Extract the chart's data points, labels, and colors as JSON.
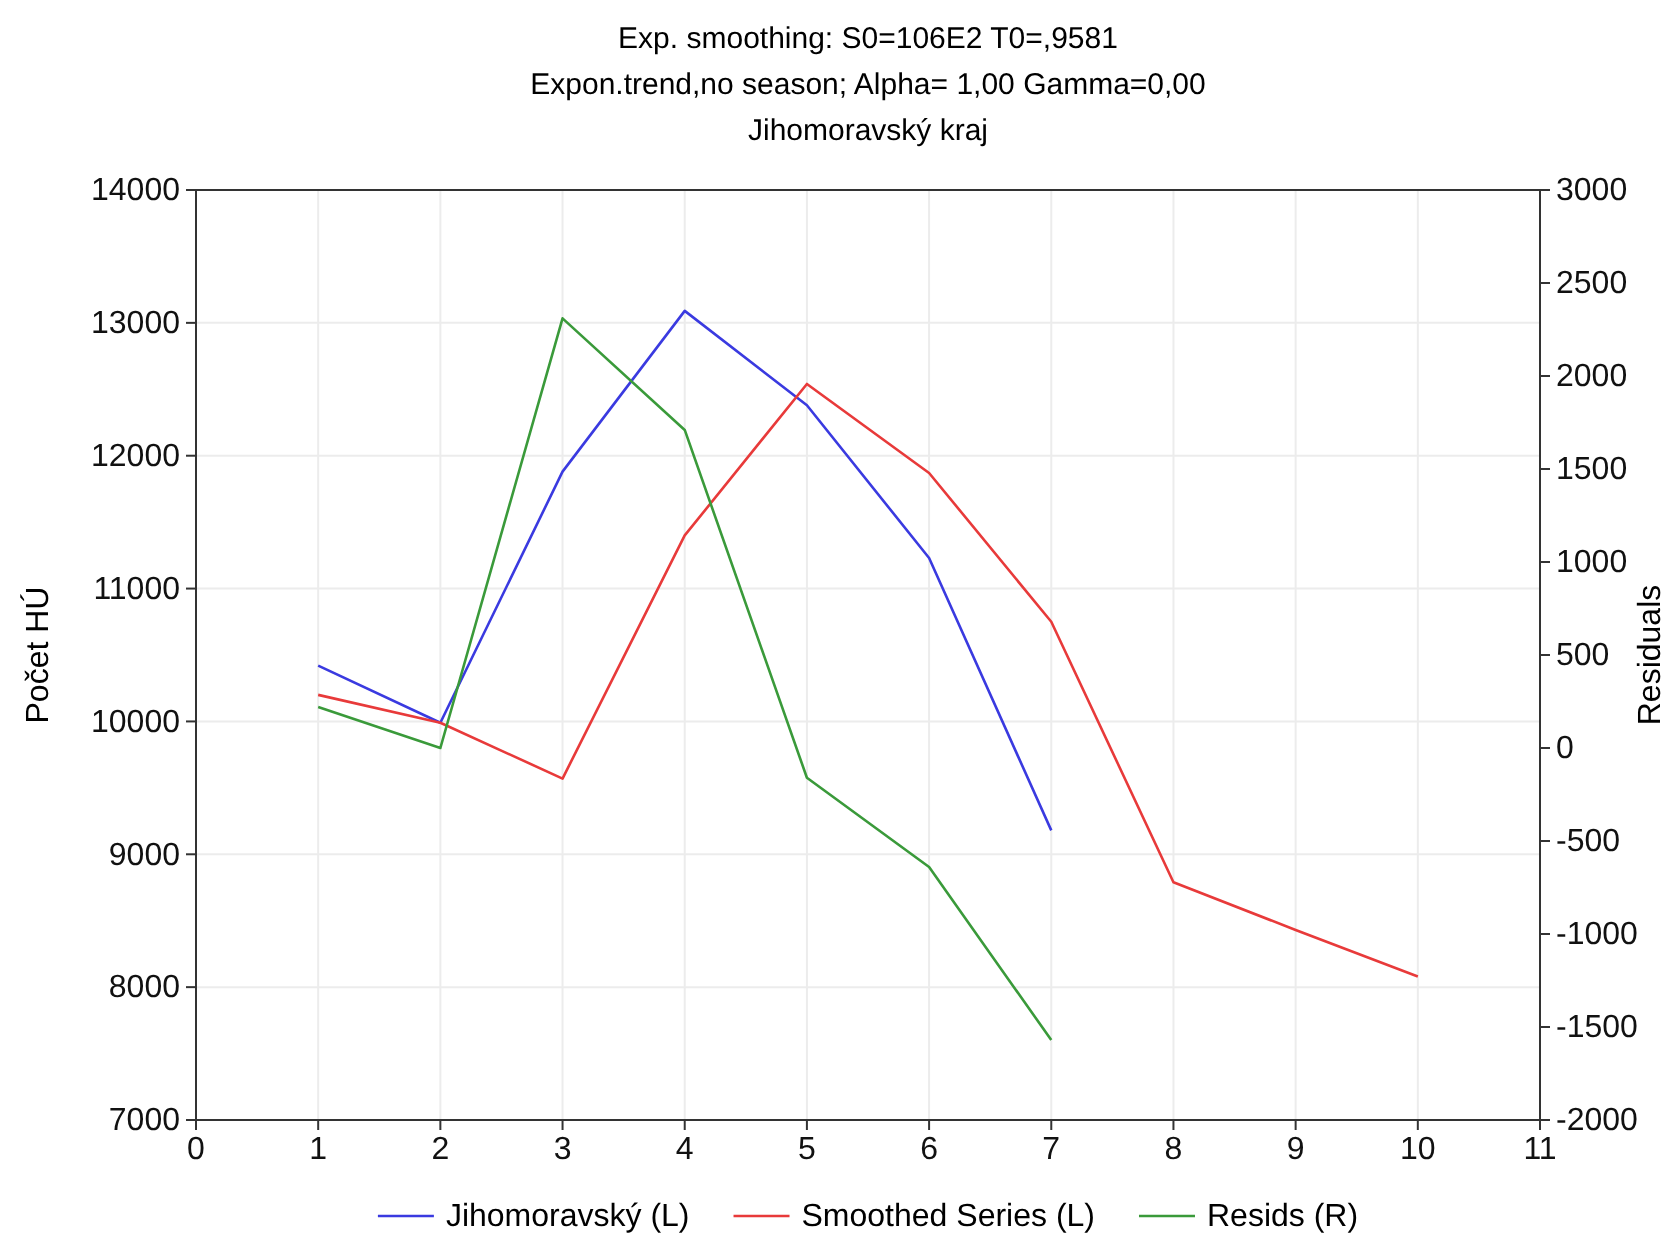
{
  "chart_data": {
    "type": "line",
    "title": "Exp. smoothing:  S0=106E2 T0=,9581",
    "subtitle": "Expon.trend,no season; Alpha=  1,00 Gamma=0,00\nJihomoravský kraj",
    "ylabel": "Počet HÚ",
    "y2label": "Residuals",
    "xlim": [
      0,
      11
    ],
    "xticks": [
      0,
      1,
      2,
      3,
      4,
      5,
      6,
      7,
      8,
      9,
      10,
      11
    ],
    "ylim": [
      7000,
      14000
    ],
    "yticks": [
      7000,
      8000,
      9000,
      10000,
      11000,
      12000,
      13000,
      14000
    ],
    "y2lim": [
      -2000,
      3000
    ],
    "y2ticks": [
      -2000,
      -1500,
      -1000,
      -500,
      0,
      500,
      1000,
      1500,
      2000,
      2500,
      3000
    ],
    "grid": true,
    "legend": "bottom",
    "series": [
      {
        "name": "Jihomoravský (L)",
        "color": "#3a3ae0",
        "x": [
          1,
          2,
          3,
          4,
          5,
          6,
          7
        ],
        "values": [
          10420,
          9990,
          11880,
          13090,
          12380,
          11230,
          9180
        ]
      },
      {
        "name": "Smoothed Series (L)",
        "color": "#e83a3a",
        "x": [
          1,
          2,
          3,
          4,
          5,
          6,
          7,
          8,
          9,
          10
        ],
        "values": [
          10200,
          9990,
          9570,
          11400,
          12540,
          11870,
          10750,
          8790,
          8430,
          8080
        ]
      },
      {
        "name": "Resids (R)",
        "color": "#3a9a3a",
        "axis": "y2",
        "x": [
          1,
          2,
          3,
          4,
          5,
          6,
          7
        ],
        "values": [
          220,
          0,
          2310,
          1710,
          -160,
          -640,
          -1570
        ]
      }
    ]
  }
}
